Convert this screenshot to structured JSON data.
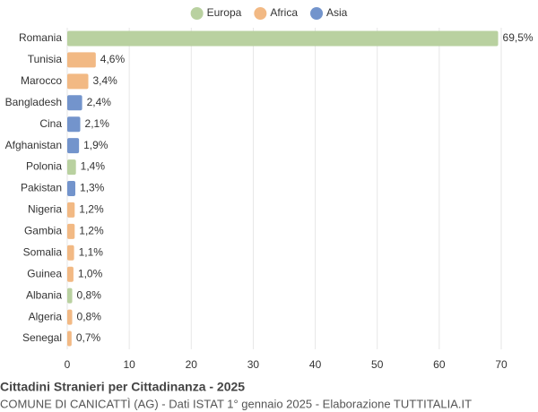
{
  "chart_data": {
    "type": "bar",
    "orientation": "horizontal",
    "title": "Cittadini Stranieri per Cittadinanza - 2025",
    "subtitle": "COMUNE DI CANICATTÌ (AG) - Dati ISTAT 1° gennaio 2025 - Elaborazione TUTTITALIA.IT",
    "categories": [
      "Romania",
      "Tunisia",
      "Marocco",
      "Bangladesh",
      "Cina",
      "Afghanistan",
      "Polonia",
      "Pakistan",
      "Nigeria",
      "Gambia",
      "Somalia",
      "Guinea",
      "Albania",
      "Algeria",
      "Senegal"
    ],
    "series": [
      {
        "name": "Europa",
        "color": "#b9d1a0",
        "values": [
          69.5,
          null,
          null,
          null,
          null,
          null,
          1.4,
          null,
          null,
          null,
          null,
          null,
          0.8,
          null,
          null
        ],
        "value_labels": [
          "69,5%",
          null,
          null,
          null,
          null,
          null,
          "1,4%",
          null,
          null,
          null,
          null,
          null,
          "0,8%",
          null,
          null
        ]
      },
      {
        "name": "Africa",
        "color": "#f2b984",
        "values": [
          null,
          4.6,
          3.4,
          null,
          null,
          null,
          null,
          null,
          1.2,
          1.2,
          1.1,
          1.0,
          null,
          0.8,
          0.7
        ],
        "value_labels": [
          null,
          "4,6%",
          "3,4%",
          null,
          null,
          null,
          null,
          null,
          "1,2%",
          "1,2%",
          "1,1%",
          "1,0%",
          null,
          "0,8%",
          "0,7%"
        ]
      },
      {
        "name": "Asia",
        "color": "#7394cc",
        "values": [
          null,
          null,
          null,
          2.4,
          2.1,
          1.9,
          null,
          1.3,
          null,
          null,
          null,
          null,
          null,
          null,
          null
        ],
        "value_labels": [
          null,
          null,
          null,
          "2,4%",
          "2,1%",
          "1,9%",
          null,
          "1,3%",
          null,
          null,
          null,
          null,
          null,
          null,
          null
        ]
      }
    ],
    "xlim": [
      0,
      70
    ],
    "xticks": [
      0,
      10,
      20,
      30,
      40,
      50,
      60,
      70
    ],
    "grid": true,
    "legend": "top"
  }
}
